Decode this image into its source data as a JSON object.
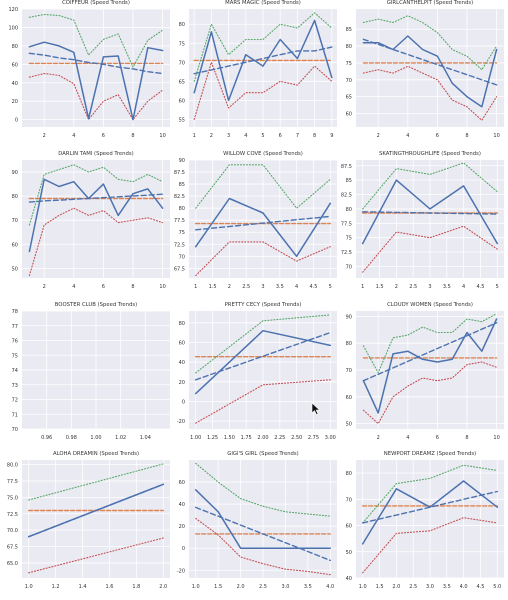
{
  "colors": {
    "panel_bg": "#eaeaf2",
    "grid": "#ffffff",
    "speed": "#4c72b0",
    "mean": "#dd8452",
    "upper": "#55a868",
    "lower": "#c44e52",
    "text": "#333333"
  },
  "chart_data": [
    {
      "type": "line",
      "title": "COIFFEUR (Speed Trends)",
      "x": [
        1,
        2,
        3,
        4,
        5,
        6,
        7,
        8,
        9,
        10
      ],
      "series": [
        {
          "role": "speed",
          "values": [
            79,
            84,
            80,
            73,
            1,
            68,
            69,
            0,
            78,
            75
          ]
        },
        {
          "role": "upper",
          "values": [
            111,
            114,
            113,
            108,
            70,
            87,
            93,
            57,
            86,
            97
          ]
        },
        {
          "role": "lower",
          "values": [
            46,
            50,
            48,
            39,
            0,
            20,
            27,
            0,
            20,
            32
          ]
        },
        {
          "role": "trend",
          "values": [
            72,
            70,
            67,
            65,
            62,
            60,
            57,
            55,
            52,
            50
          ]
        },
        {
          "role": "mean",
          "values": [
            61,
            61,
            61,
            61,
            61,
            61,
            61,
            61,
            61,
            61
          ]
        }
      ],
      "xlim": [
        0.5,
        10.5
      ],
      "ylim": [
        -8,
        120
      ],
      "xticks": [
        2,
        4,
        6,
        8,
        10
      ],
      "yticks": [
        0,
        20,
        40,
        60,
        80,
        100,
        120
      ]
    },
    {
      "type": "line",
      "title": "MARS MAGIC (Speed Trends)",
      "x": [
        1,
        2,
        3,
        4,
        5,
        6,
        7,
        8,
        9
      ],
      "series": [
        {
          "role": "speed",
          "values": [
            62,
            78,
            60,
            72,
            69,
            76,
            71,
            81,
            66
          ]
        },
        {
          "role": "upper",
          "values": [
            65,
            80,
            72,
            76,
            76,
            80,
            79,
            83,
            79
          ]
        },
        {
          "role": "lower",
          "values": [
            55,
            70,
            58,
            62,
            62,
            65,
            64,
            69,
            65
          ]
        },
        {
          "role": "trend",
          "values": [
            67,
            68,
            69,
            70,
            71,
            72,
            73,
            73,
            74
          ]
        },
        {
          "role": "mean",
          "values": [
            70.5,
            70.5,
            70.5,
            70.5,
            70.5,
            70.5,
            70.5,
            70.5,
            70.5
          ]
        }
      ],
      "xlim": [
        0.7,
        9.3
      ],
      "ylim": [
        53,
        84
      ],
      "xticks": [
        1,
        2,
        3,
        4,
        5,
        6,
        7,
        8,
        9
      ],
      "yticks": [
        55,
        60,
        65,
        70,
        75,
        80
      ]
    },
    {
      "type": "line",
      "title": "GIRLCANTHELPIT (Speed Trends)",
      "x": [
        1,
        2,
        3,
        4,
        5,
        6,
        7,
        8,
        9,
        10
      ],
      "series": [
        {
          "role": "speed",
          "values": [
            81,
            81,
            79,
            83,
            79,
            77,
            69,
            65,
            62,
            79
          ]
        },
        {
          "role": "upper",
          "values": [
            87,
            88,
            87,
            89,
            87,
            84,
            79,
            77,
            73,
            80
          ]
        },
        {
          "role": "lower",
          "values": [
            72,
            73,
            72,
            74,
            72,
            70,
            64,
            62,
            58,
            65
          ]
        },
        {
          "role": "trend",
          "values": [
            82,
            80.5,
            79,
            77.5,
            76,
            74.5,
            73,
            71.5,
            70,
            68.5
          ]
        },
        {
          "role": "mean",
          "values": [
            75,
            75,
            75,
            75,
            75,
            75,
            75,
            75,
            75,
            75
          ]
        }
      ],
      "xlim": [
        0.5,
        10.5
      ],
      "ylim": [
        56,
        91
      ],
      "xticks": [
        2,
        4,
        6,
        8,
        10
      ],
      "yticks": [
        60,
        65,
        70,
        75,
        80,
        85
      ]
    },
    {
      "type": "line",
      "title": "DARLIN TAMI (Speed Trends)",
      "x": [
        1,
        2,
        3,
        4,
        5,
        6,
        7,
        8,
        9,
        10
      ],
      "series": [
        {
          "role": "speed",
          "values": [
            57,
            87,
            84,
            86,
            79,
            85,
            72,
            81,
            83,
            75
          ]
        },
        {
          "role": "upper",
          "values": [
            68,
            89,
            91,
            93,
            90,
            92,
            87,
            86,
            89,
            86
          ]
        },
        {
          "role": "lower",
          "values": [
            47,
            68,
            72,
            75,
            72,
            74,
            69,
            70,
            71,
            69
          ]
        },
        {
          "role": "trend",
          "values": [
            77.5,
            78,
            78.3,
            78.7,
            79,
            79.4,
            79.7,
            80.1,
            80.4,
            80.8
          ]
        },
        {
          "role": "mean",
          "values": [
            79,
            79,
            79,
            79,
            79,
            79,
            79,
            79,
            79,
            79
          ]
        }
      ],
      "xlim": [
        0.5,
        10.5
      ],
      "ylim": [
        46,
        95
      ],
      "xticks": [
        2,
        4,
        6,
        8,
        10
      ],
      "yticks": [
        50,
        60,
        70,
        80,
        90
      ]
    },
    {
      "type": "line",
      "title": "WILLOW COVE (Speed Trends)",
      "x": [
        1,
        2,
        3,
        4,
        5
      ],
      "series": [
        {
          "role": "speed",
          "values": [
            72,
            82,
            79,
            70,
            81
          ]
        },
        {
          "role": "upper",
          "values": [
            80,
            89,
            89,
            80,
            86
          ]
        },
        {
          "role": "lower",
          "values": [
            66,
            73,
            73,
            69,
            72
          ]
        },
        {
          "role": "trend",
          "values": [
            75.5,
            76.2,
            76.9,
            77.6,
            78.3
          ]
        },
        {
          "role": "mean",
          "values": [
            76.8,
            76.8,
            76.8,
            76.8,
            76.8
          ]
        }
      ],
      "xlim": [
        0.8,
        5.2
      ],
      "ylim": [
        65.5,
        90
      ],
      "xticks": [
        1,
        1.5,
        2,
        2.5,
        3,
        3.5,
        4,
        4.5,
        5
      ],
      "yticks": [
        67.5,
        70,
        72.5,
        75,
        77.5,
        80,
        82.5,
        85,
        87.5,
        90
      ]
    },
    {
      "type": "line",
      "title": "SKATINGTHROUGHLIFE (Speed Trends)",
      "x": [
        1,
        2,
        3,
        4,
        5
      ],
      "series": [
        {
          "role": "speed",
          "values": [
            74,
            85,
            80,
            84,
            74
          ]
        },
        {
          "role": "upper",
          "values": [
            80,
            87,
            86,
            88,
            83
          ]
        },
        {
          "role": "lower",
          "values": [
            69,
            76,
            75,
            77,
            73
          ]
        },
        {
          "role": "trend",
          "values": [
            79.5,
            79.4,
            79.3,
            79.2,
            79.1
          ]
        },
        {
          "role": "mean",
          "values": [
            79.3,
            79.3,
            79.3,
            79.3,
            79.3
          ]
        }
      ],
      "xlim": [
        0.8,
        5.2
      ],
      "ylim": [
        68,
        88.5
      ],
      "xticks": [
        1,
        1.5,
        2,
        2.5,
        3,
        3.5,
        4,
        4.5,
        5
      ],
      "yticks": [
        70,
        72.5,
        75,
        77.5,
        80,
        82.5,
        85,
        87.5
      ]
    },
    {
      "type": "line",
      "title": "BOOSTER CLUB (Speed Trends)",
      "x": [],
      "series": [],
      "xlim": [
        0.94,
        1.06
      ],
      "ylim": [
        70,
        78
      ],
      "xticks": [
        0.96,
        0.98,
        1.0,
        1.02,
        1.04
      ],
      "yticks": [
        70,
        71,
        72,
        73,
        74,
        75,
        76,
        77,
        78
      ],
      "xtick_labels": [
        "0.96",
        "0.98",
        "1.00",
        "1.02",
        "1.04"
      ]
    },
    {
      "type": "line",
      "title": "PRETTY CECY (Speed Trends)",
      "x": [
        1,
        2,
        3
      ],
      "series": [
        {
          "role": "speed",
          "values": [
            8,
            72,
            57
          ]
        },
        {
          "role": "upper",
          "values": [
            29,
            82,
            88
          ]
        },
        {
          "role": "lower",
          "values": [
            -22,
            17,
            22
          ]
        },
        {
          "role": "trend",
          "values": [
            22,
            46,
            70
          ]
        },
        {
          "role": "mean",
          "values": [
            45.5,
            45.5,
            45.5
          ]
        }
      ],
      "xlim": [
        0.9,
        3.1
      ],
      "ylim": [
        -28,
        92
      ],
      "xticks": [
        1,
        1.25,
        1.5,
        1.75,
        2,
        2.25,
        2.5,
        2.75,
        3
      ],
      "yticks": [
        -20,
        0,
        20,
        40,
        60,
        80
      ],
      "xtick_labels": [
        "1.00",
        "1.25",
        "1.50",
        "1.75",
        "2.00",
        "2.25",
        "2.50",
        "2.75",
        "3.00"
      ]
    },
    {
      "type": "line",
      "title": "CLOUDY WOMEN (Speed Trends)",
      "x": [
        1,
        2,
        3,
        4,
        5,
        6,
        7,
        8,
        9,
        10
      ],
      "series": [
        {
          "role": "speed",
          "values": [
            66,
            54,
            76,
            77,
            74,
            73,
            74,
            84,
            77,
            89
          ]
        },
        {
          "role": "upper",
          "values": [
            79,
            69,
            82,
            83,
            86,
            84,
            84,
            89,
            88,
            91
          ]
        },
        {
          "role": "lower",
          "values": [
            55,
            50,
            60,
            64,
            67,
            66,
            67,
            72,
            73,
            71
          ]
        },
        {
          "role": "trend",
          "values": [
            66,
            68.4,
            70.8,
            73.2,
            75.6,
            78,
            80.4,
            82.8,
            85.2,
            87.6
          ]
        },
        {
          "role": "mean",
          "values": [
            74.5,
            74.5,
            74.5,
            74.5,
            74.5,
            74.5,
            74.5,
            74.5,
            74.5,
            74.5
          ]
        }
      ],
      "xlim": [
        0.5,
        10.5
      ],
      "ylim": [
        48,
        92
      ],
      "xticks": [
        2,
        4,
        6,
        8,
        10
      ],
      "yticks": [
        50,
        60,
        70,
        80,
        90
      ]
    },
    {
      "type": "line",
      "title": "ALOHA DREAMIN (Speed Trends)",
      "x": [
        1,
        2
      ],
      "series": [
        {
          "role": "speed",
          "values": [
            69,
            77
          ]
        },
        {
          "role": "upper",
          "values": [
            74.6,
            80.1
          ]
        },
        {
          "role": "lower",
          "values": [
            63.5,
            68.8
          ]
        },
        {
          "role": "trend",
          "values": [
            69,
            77
          ]
        },
        {
          "role": "mean",
          "values": [
            73,
            73
          ]
        }
      ],
      "xlim": [
        0.95,
        2.05
      ],
      "ylim": [
        62.7,
        80.7
      ],
      "xticks": [
        1,
        1.2,
        1.4,
        1.6,
        1.8,
        2
      ],
      "yticks": [
        65,
        67.5,
        70,
        72.5,
        75,
        77.5,
        80
      ],
      "xtick_labels": [
        "1.0",
        "1.2",
        "1.4",
        "1.6",
        "1.8",
        "2.0"
      ],
      "ytick_labels": [
        "65.0",
        "67.5",
        "70.0",
        "72.5",
        "75.0",
        "77.5",
        "80.0"
      ]
    },
    {
      "type": "line",
      "title": "GIGI'S GIRL (Speed Trends)",
      "x": [
        1,
        1.5,
        2,
        2.5,
        3,
        3.5,
        4
      ],
      "series": [
        {
          "role": "speed",
          "values": [
            53,
            33,
            0,
            0,
            0,
            0,
            0
          ]
        },
        {
          "role": "upper",
          "values": [
            77,
            60,
            45,
            38,
            33,
            31,
            29
          ]
        },
        {
          "role": "lower",
          "values": [
            27,
            12,
            -8,
            -14,
            -19,
            -21,
            -24
          ]
        },
        {
          "role": "trend",
          "values": [
            37,
            29,
            21,
            13,
            5,
            -3,
            -11
          ]
        },
        {
          "role": "mean",
          "values": [
            13,
            13,
            13,
            13,
            13,
            13,
            13
          ]
        }
      ],
      "xlim": [
        0.85,
        4.15
      ],
      "ylim": [
        -27,
        80
      ],
      "xticks": [
        1,
        1.5,
        2,
        2.5,
        3,
        3.5,
        4
      ],
      "yticks": [
        -20,
        0,
        20,
        40,
        60
      ],
      "xtick_labels": [
        "1.0",
        "1.5",
        "2.0",
        "2.5",
        "3.0",
        "3.5",
        "4.0"
      ]
    },
    {
      "type": "line",
      "title": "NEWPORT DREAMZ (Speed Trends)",
      "x": [
        1,
        2,
        3,
        4,
        5
      ],
      "series": [
        {
          "role": "speed",
          "values": [
            53,
            74,
            67,
            77,
            67
          ]
        },
        {
          "role": "upper",
          "values": [
            61,
            76,
            78,
            83,
            81
          ]
        },
        {
          "role": "lower",
          "values": [
            42,
            57,
            58,
            63,
            61
          ]
        },
        {
          "role": "trend",
          "values": [
            61,
            64,
            67,
            70,
            73
          ]
        },
        {
          "role": "mean",
          "values": [
            67.5,
            67.5,
            67.5,
            67.5,
            67.5
          ]
        }
      ],
      "xlim": [
        0.8,
        5.2
      ],
      "ylim": [
        40,
        85
      ],
      "xticks": [
        1,
        1.5,
        2,
        2.5,
        3,
        3.5,
        4,
        4.5,
        5
      ],
      "yticks": [
        40,
        50,
        60,
        70,
        80
      ],
      "xtick_labels": [
        "1.0",
        "1.5",
        "2.0",
        "2.5",
        "3.0",
        "3.5",
        "4.0",
        "4.5",
        "5.0"
      ]
    }
  ]
}
